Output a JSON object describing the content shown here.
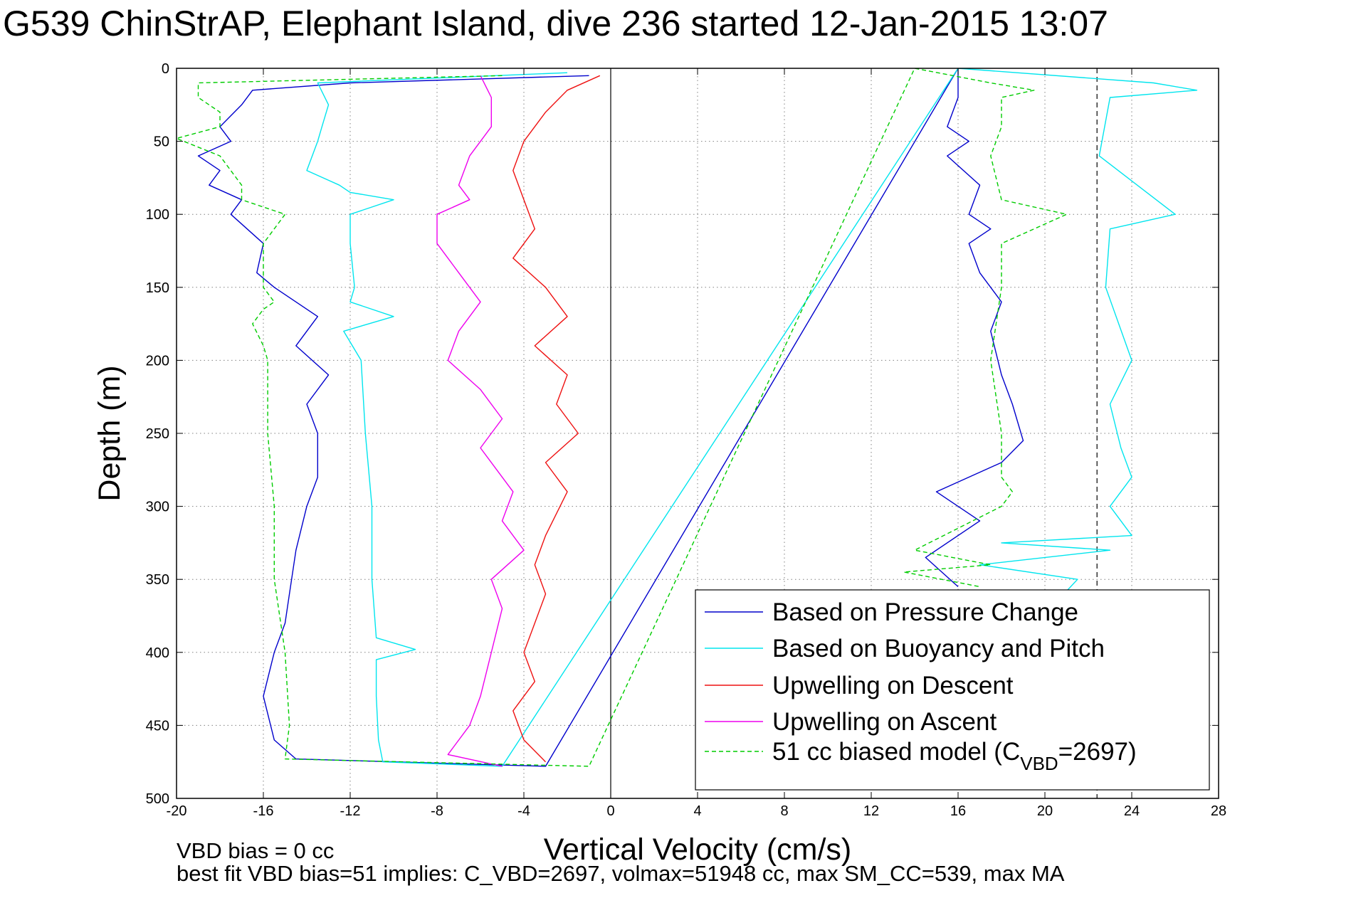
{
  "figure": {
    "title": "G539 ChinStrAP, Elephant Island, dive 236 started 12-Jan-2015 13:07",
    "note_line1": "VBD bias = 0 cc",
    "note_line2": "best fit VBD bias=51 implies: C_VBD=2697, volmax=51948 cc, max SM_CC=539, max MA"
  },
  "colors": {
    "pressure": "#0000cc",
    "buoyancy": "#00e5ee",
    "descent": "#ee1111",
    "ascent": "#ee00ee",
    "model": "#00cc00",
    "axis": "#000000",
    "grid": "#808080"
  },
  "chart_data": {
    "type": "line",
    "title": "G539 ChinStrAP, Elephant Island, dive 236 started 12-Jan-2015 13:07",
    "xlabel": "Vertical Velocity (cm/s)",
    "ylabel": "Depth (m)",
    "xlim": [
      -20,
      28
    ],
    "ylim": [
      0,
      500
    ],
    "y_reversed": true,
    "grid": true,
    "legend_position": "bottom-right",
    "xticks": [
      -20,
      -16,
      -12,
      -8,
      -4,
      0,
      4,
      8,
      12,
      16,
      20,
      24,
      28
    ],
    "xtick_labels": [
      "-20",
      "-16",
      "-12",
      "-8",
      "-4",
      "0",
      "4",
      "8",
      "12",
      "16",
      "20",
      "24",
      "28"
    ],
    "yticks": [
      0,
      50,
      100,
      150,
      200,
      250,
      300,
      350,
      400,
      450,
      500
    ],
    "ytick_labels": [
      "0",
      "50",
      "100",
      "150",
      "200",
      "250",
      "300",
      "350",
      "400",
      "450",
      "500"
    ],
    "reference_lines": [
      {
        "orientation": "vertical",
        "x": 0,
        "style": "solid"
      },
      {
        "orientation": "vertical",
        "x": 22.4,
        "style": "dashed"
      }
    ],
    "series": [
      {
        "name": "Based on Pressure Change",
        "color_key": "pressure",
        "dashed": false,
        "x": [
          -1,
          -12,
          -16.5,
          -17,
          -18,
          -17.5,
          -19,
          -18,
          -18.5,
          -17,
          -17.5,
          -16,
          -16.3,
          -15.5,
          -14.5,
          -13.5,
          -14.5,
          -13,
          -14,
          -13.5,
          -13.5,
          -14,
          -14.5,
          -14.8,
          -15,
          -15.5,
          -16,
          -15.5,
          -14.5,
          -3,
          16,
          16,
          15.5,
          16.5,
          15.5,
          17,
          16.5,
          17.5,
          16.5,
          17,
          18,
          17.5,
          18,
          18.5,
          19,
          18,
          15,
          17,
          14.5,
          16
        ],
        "y": [
          5,
          10,
          15,
          25,
          40,
          50,
          60,
          70,
          80,
          90,
          100,
          120,
          140,
          150,
          160,
          170,
          190,
          210,
          230,
          250,
          280,
          300,
          330,
          360,
          380,
          400,
          430,
          460,
          473,
          478,
          0,
          20,
          40,
          50,
          60,
          80,
          100,
          110,
          120,
          140,
          160,
          180,
          210,
          230,
          255,
          270,
          290,
          310,
          335,
          355
        ]
      },
      {
        "name": "Based on Buoyancy and Pitch",
        "color_key": "buoyancy",
        "dashed": false,
        "x": [
          -2,
          -13.5,
          -13,
          -13.3,
          -13.5,
          -14,
          -12.5,
          -12,
          -10,
          -12,
          -12,
          -11.8,
          -12,
          -10,
          -12.3,
          -11.5,
          -11.3,
          -11,
          -11,
          -10.8,
          -9,
          -10.8,
          -10.8,
          -10.7,
          -10.5,
          -5,
          16,
          25,
          27,
          23,
          22.5,
          26,
          23,
          22.8,
          24,
          23,
          23.5,
          24,
          23,
          24,
          18,
          23,
          17,
          21.5,
          21
        ],
        "y": [
          3,
          10,
          25,
          40,
          50,
          70,
          80,
          85,
          90,
          100,
          120,
          150,
          160,
          170,
          180,
          200,
          250,
          300,
          350,
          390,
          398,
          405,
          430,
          460,
          475,
          478,
          0,
          10,
          15,
          20,
          60,
          100,
          110,
          150,
          200,
          230,
          260,
          280,
          300,
          320,
          325,
          330,
          340,
          350,
          358
        ]
      },
      {
        "name": "Upwelling on Descent",
        "color_key": "descent",
        "dashed": false,
        "x": [
          -0.5,
          -2,
          -3,
          -4,
          -4.5,
          -4,
          -3.5,
          -4.5,
          -3,
          -2,
          -3.5,
          -2,
          -2.5,
          -1.5,
          -3,
          -2,
          -3,
          -3.5,
          -3,
          -3.5,
          -4,
          -3.5,
          -4.5,
          -4,
          -3
        ],
        "y": [
          5,
          15,
          30,
          50,
          70,
          90,
          110,
          130,
          150,
          170,
          190,
          210,
          230,
          250,
          270,
          290,
          320,
          340,
          360,
          380,
          400,
          420,
          440,
          460,
          475
        ]
      },
      {
        "name": "Upwelling on Ascent",
        "color_key": "ascent",
        "dashed": false,
        "x": [
          -6,
          -5.5,
          -5.5,
          -6.5,
          -7,
          -6.5,
          -8,
          -8,
          -7,
          -6,
          -7,
          -7.5,
          -6,
          -5,
          -6,
          -4.5,
          -5,
          -4,
          -5.5,
          -5,
          -5.5,
          -6,
          -6.5,
          -7.5,
          -5
        ],
        "y": [
          5,
          20,
          40,
          60,
          80,
          90,
          100,
          120,
          140,
          160,
          180,
          200,
          220,
          240,
          260,
          290,
          310,
          330,
          350,
          370,
          400,
          430,
          450,
          470,
          478
        ]
      },
      {
        "name": "51 cc biased model (C<sub>VBD</sub>=2697)",
        "legend_main": "51 cc biased model (C",
        "legend_sub": "VBD",
        "legend_tail": "=2697)",
        "color_key": "model",
        "dashed": true,
        "x": [
          -5,
          -19,
          -19,
          -18,
          -18,
          -20,
          -18,
          -17,
          -17,
          -15,
          -16,
          -16,
          -15.5,
          -16,
          -16.5,
          -16,
          -15.8,
          -15.8,
          -15.5,
          -15.5,
          -15,
          -14.8,
          -15,
          -1,
          14,
          17.5,
          19.5,
          18,
          18,
          17.5,
          18,
          21,
          18,
          18,
          17.5,
          18,
          18,
          18.5,
          18,
          14,
          17.5,
          13.5,
          17
        ],
        "y": [
          5,
          10,
          20,
          30,
          40,
          48,
          60,
          80,
          90,
          100,
          120,
          150,
          160,
          165,
          175,
          190,
          200,
          250,
          300,
          350,
          400,
          450,
          473,
          478,
          0,
          10,
          15,
          20,
          40,
          60,
          90,
          100,
          120,
          150,
          200,
          250,
          280,
          290,
          300,
          330,
          340,
          345,
          355
        ]
      }
    ]
  }
}
